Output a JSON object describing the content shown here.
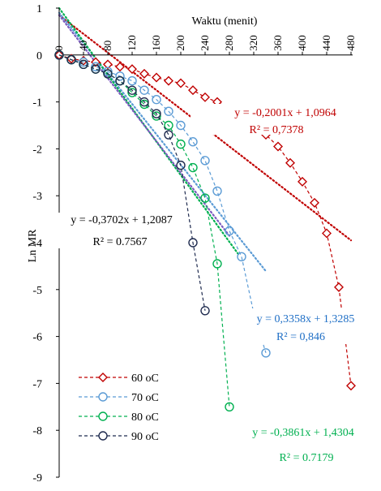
{
  "chart_data": {
    "type": "line",
    "xlabel": "Waktu (menit)",
    "ylabel": "Ln MR",
    "xlim": [
      0,
      480
    ],
    "ylim": [
      -9,
      1
    ],
    "x_ticks": [
      "0",
      "40",
      "80",
      "120",
      "160",
      "200",
      "240",
      "280",
      "320",
      "360",
      "400",
      "440",
      "480"
    ],
    "y_ticks": [
      "1",
      "0",
      "-1",
      "-2",
      "-3",
      "-4",
      "-5",
      "-6",
      "-7",
      "-8",
      "-9"
    ],
    "legend_position": "bottom-left",
    "series": [
      {
        "name": "60 oC",
        "color": "#c00000",
        "marker": "diamond",
        "x": [
          0,
          20,
          40,
          60,
          80,
          100,
          120,
          140,
          160,
          180,
          200,
          220,
          240,
          260,
          280,
          300,
          320,
          340,
          360,
          380,
          400,
          420,
          440,
          460,
          480
        ],
        "y": [
          0,
          -0.08,
          -0.12,
          -0.15,
          -0.2,
          -0.25,
          -0.3,
          -0.4,
          -0.48,
          -0.55,
          -0.6,
          -0.75,
          -0.9,
          -1.0,
          -1.15,
          -1.3,
          -1.5,
          -1.7,
          -1.95,
          -2.3,
          -2.7,
          -3.15,
          -3.8,
          -4.95,
          -7.05
        ]
      },
      {
        "name": "70 oC",
        "color": "#5b9bd5",
        "marker": "circle",
        "x": [
          0,
          20,
          40,
          60,
          80,
          100,
          120,
          140,
          160,
          180,
          200,
          220,
          240,
          260,
          280,
          300,
          320,
          340
        ],
        "y": [
          0,
          -0.1,
          -0.15,
          -0.25,
          -0.35,
          -0.45,
          -0.55,
          -0.75,
          -0.95,
          -1.2,
          -1.5,
          -1.85,
          -2.25,
          -2.9,
          -3.75,
          -4.3,
          -5.5,
          -6.35
        ]
      },
      {
        "name": "80 oC",
        "color": "#00b050",
        "marker": "circle",
        "x": [
          0,
          20,
          40,
          60,
          80,
          100,
          120,
          140,
          160,
          180,
          200,
          220,
          240,
          260,
          280
        ],
        "y": [
          0,
          -0.1,
          -0.2,
          -0.3,
          -0.4,
          -0.55,
          -0.8,
          -1.05,
          -1.3,
          -1.5,
          -1.9,
          -2.4,
          -3.05,
          -4.45,
          -7.5
        ]
      },
      {
        "name": "90 oC",
        "color": "#1f2b4f",
        "marker": "circle",
        "x": [
          0,
          20,
          40,
          60,
          80,
          100,
          120,
          140,
          160,
          180,
          200,
          220,
          240
        ],
        "y": [
          0,
          -0.1,
          -0.2,
          -0.3,
          -0.4,
          -0.55,
          -0.75,
          -1.0,
          -1.25,
          -1.7,
          -2.35,
          -4.0,
          -5.45
        ]
      }
    ],
    "trendlines": [
      {
        "color": "#c00000",
        "slope": -0.01,
        "intercept": 0.85,
        "x_range": [
          0,
          480
        ]
      },
      {
        "color": "#5b9bd5",
        "slope": -0.0162,
        "intercept": 0.9,
        "x_range": [
          0,
          340
        ]
      },
      {
        "color": "#00b050",
        "slope": -0.0178,
        "intercept": 1.0,
        "x_range": [
          0,
          295
        ]
      },
      {
        "color": "#7b5bbf",
        "slope": -0.0168,
        "intercept": 0.85,
        "x_range": [
          0,
          280
        ]
      }
    ],
    "annotations": [
      {
        "color": "#c00000",
        "equation": "y = -0,2001x + 1,0964",
        "r2": "R² = 0,7378"
      },
      {
        "color": "#1f6fc6",
        "equation": "y = 0,3358x + 1,3285",
        "r2": "R² = 0,846"
      },
      {
        "color": "#00b050",
        "equation": "y = -0,3861x + 1,4304",
        "r2": "R² = 0.7179"
      },
      {
        "color": "#000000",
        "equation": "y = -0,3702x + 1,2087",
        "r2": "R² = 0.7567"
      }
    ]
  }
}
